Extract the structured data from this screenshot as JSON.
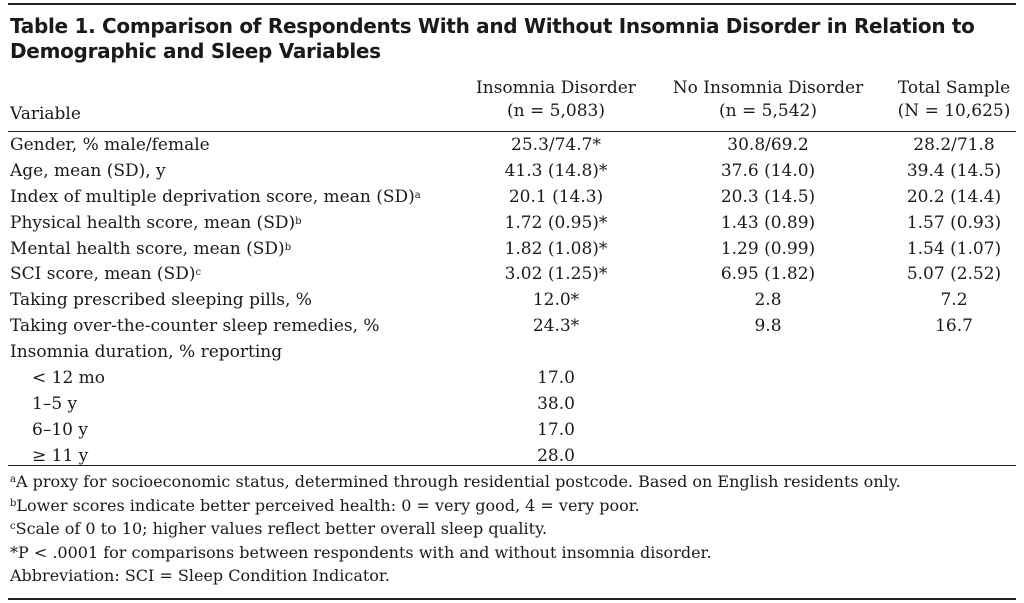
{
  "table": {
    "title": "Table 1. Comparison of Respondents With and Without Insomnia Disorder in Relation to Demographic and Sleep Variables",
    "header": {
      "variable": "Variable",
      "columns": [
        {
          "line1": "Insomnia Disorder",
          "line2": "(n = 5,083)"
        },
        {
          "line1": "No Insomnia Disorder",
          "line2": "(n = 5,542)"
        },
        {
          "line1": "Total Sample",
          "line2": "(N = 10,625)"
        }
      ]
    },
    "rows": [
      {
        "label": "Gender, % male/female",
        "sup": "",
        "values": [
          "25.3/74.7*",
          "30.8/69.2",
          "28.2/71.8"
        ]
      },
      {
        "label": "Age, mean (SD), y",
        "sup": "",
        "values": [
          "41.3 (14.8)*",
          "37.6 (14.0)",
          "39.4 (14.5)"
        ]
      },
      {
        "label": "Index of multiple deprivation score, mean (SD)",
        "sup": "a",
        "values": [
          "20.1 (14.3)",
          "20.3 (14.5)",
          "20.2 (14.4)"
        ]
      },
      {
        "label": "Physical health score, mean (SD)",
        "sup": "b",
        "values": [
          "1.72 (0.95)*",
          "1.43 (0.89)",
          "1.57 (0.93)"
        ]
      },
      {
        "label": "Mental health score, mean (SD)",
        "sup": "b",
        "values": [
          "1.82 (1.08)*",
          "1.29 (0.99)",
          "1.54 (1.07)"
        ]
      },
      {
        "label": "SCI score, mean (SD)",
        "sup": "c",
        "values": [
          "3.02 (1.25)*",
          "6.95 (1.82)",
          "5.07 (2.52)"
        ]
      },
      {
        "label": "Taking prescribed sleeping pills, %",
        "sup": "",
        "values": [
          "12.0*",
          "2.8",
          "7.2"
        ]
      },
      {
        "label": "Taking over-the-counter sleep remedies, %",
        "sup": "",
        "values": [
          "24.3*",
          "9.8",
          "16.7"
        ]
      },
      {
        "label": "Insomnia duration, % reporting",
        "sup": "",
        "values": [
          "",
          "",
          ""
        ]
      },
      {
        "label": "< 12 mo",
        "sup": "",
        "indent": true,
        "values": [
          "17.0",
          "",
          ""
        ]
      },
      {
        "label": "1–5 y",
        "sup": "",
        "indent": true,
        "values": [
          "38.0",
          "",
          ""
        ]
      },
      {
        "label": "6–10 y",
        "sup": "",
        "indent": true,
        "values": [
          "17.0",
          "",
          ""
        ]
      },
      {
        "label": "≥ 11 y",
        "sup": "",
        "indent": true,
        "values": [
          "28.0",
          "",
          ""
        ]
      }
    ],
    "footnotes": [
      {
        "mark": "a",
        "text": "A proxy for socioeconomic status, determined through residential postcode. Based on English residents only."
      },
      {
        "mark": "b",
        "text": "Lower scores indicate better perceived health: 0 = very good, 4 = very poor."
      },
      {
        "mark": "c",
        "text": "Scale of 0 to 10; higher values reflect better overall sleep quality."
      },
      {
        "mark": "*",
        "text": "P < .0001 for comparisons between respondents with and without insomnia disorder."
      },
      {
        "mark": "",
        "text": "Abbreviation: SCI = Sleep Condition Indicator."
      }
    ]
  }
}
